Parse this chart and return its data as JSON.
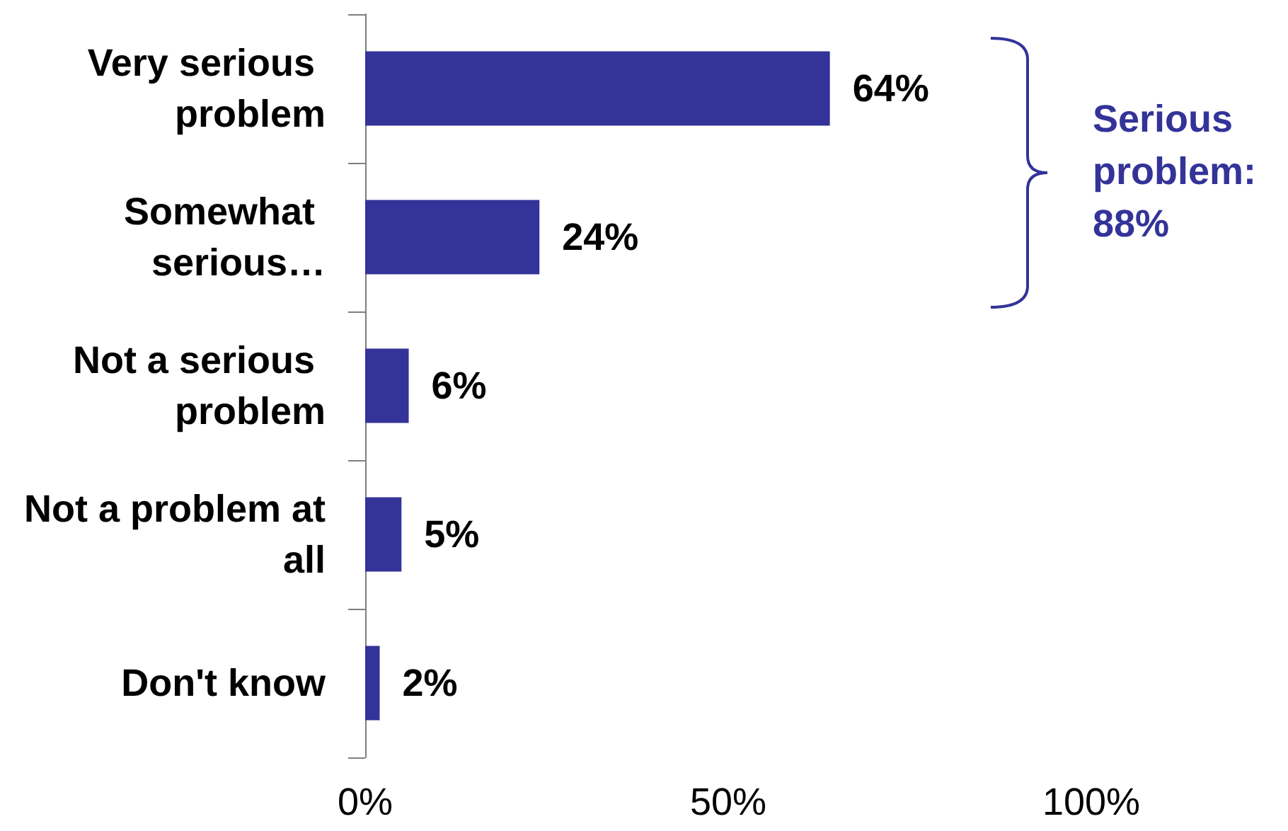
{
  "chart_data": {
    "type": "bar",
    "orientation": "horizontal",
    "categories": [
      "Very serious problem",
      "Somewhat serious…",
      "Not a serious problem",
      "Not a problem at all",
      "Don't know"
    ],
    "values": [
      64,
      24,
      6,
      5,
      2
    ],
    "color": "#333399",
    "value_labels": [
      "64%",
      "24%",
      "6%",
      "5%",
      "2%"
    ],
    "xlim": [
      0,
      100
    ],
    "xticks": [
      {
        "value": 0,
        "label": "0%"
      },
      {
        "value": 50,
        "label": "50%"
      },
      {
        "value": 100,
        "label": "100%"
      }
    ],
    "grid": false,
    "annotations": [
      "Serious problem: 88%"
    ]
  }
}
